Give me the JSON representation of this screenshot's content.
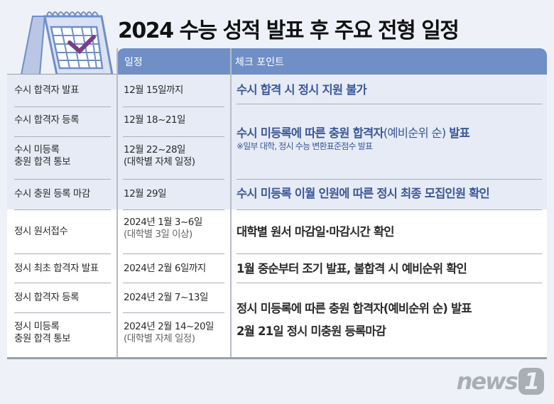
{
  "title": "2024 수능 성적 발표 후 주요 전형 일정",
  "header": {
    "col_schedule": "일정",
    "col_checkpoint": "체크 포인트"
  },
  "colors": {
    "header": "#6f8fc6",
    "accent_text": "#3b5897",
    "check_mark": "#7b3f86"
  },
  "icon": "calendar-check-icon",
  "susi_rows": [
    {
      "event": "수시 합격자 발표",
      "date": "12월 15일까지",
      "date_sub": ""
    },
    {
      "event": "수시 합격자 등록",
      "date": "12월 18~21일",
      "date_sub": ""
    },
    {
      "event_line1": "수시 미등록",
      "event_line2": "충원 합격 통보",
      "date": "12월 22~28일",
      "date_sub": "(대학별 자체 일정)"
    },
    {
      "event": "수시 충원 등록 마감",
      "date": "12월 29일",
      "date_sub": ""
    }
  ],
  "susi_checks": [
    {
      "text": "수시 합격 시 정시 지원 불가"
    },
    {
      "text_a": "수시 미등록에 따른 충원 합격자",
      "text_b": "(예비순위 순)",
      "text_c": " 발표",
      "note": "※일부 대학, 정시 수능 변환표준점수 발표"
    },
    {
      "text": "수시 미등록 이월 인원에 따른 정시 최종 모집인원 확인"
    }
  ],
  "jeongsi_rows": [
    {
      "event": "정시 원서접수",
      "date": "2024년 1월 3~6일",
      "date_sub": "(대학별 3일 이상)"
    },
    {
      "event": "정시 최초 합격자 발표",
      "date": "2024년 2월 6일까지",
      "date_sub": ""
    },
    {
      "event": "정시 합격자 등록",
      "date": "2024년 2월 7~13일",
      "date_sub": ""
    },
    {
      "event_line1": "정시 미등록",
      "event_line2": "충원 합격 통보",
      "date": "2024년 2월 14~20일",
      "date_sub": "(대학별 자체 일정)"
    }
  ],
  "jeongsi_checks": [
    {
      "text": "대학별 원서 마감일·마감시간 확인"
    },
    {
      "text": "1월 중순부터 조기 발표, 불합격 시 예비순위 확인"
    },
    {
      "text_line1": "정시 미등록에 따른 충원 합격자(예비순위 순) 발표",
      "text_line2": "2월 21일 정시 미충원 등록마감"
    }
  ],
  "logo": "news1"
}
